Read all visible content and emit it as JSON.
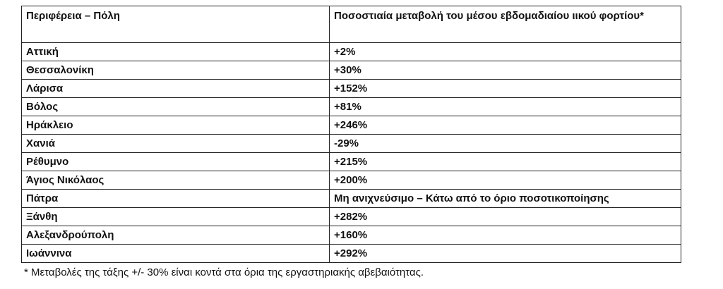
{
  "table": {
    "header": [
      "Περιφέρεια – Πόλη",
      "Ποσοστιαία μεταβολή του μέσου εβδομαδιαίου ιικού φορτίου*"
    ],
    "rows": [
      [
        "Αττική",
        "+2%"
      ],
      [
        "Θεσσαλονίκη",
        "+30%"
      ],
      [
        "Λάρισα",
        "+152%"
      ],
      [
        "Βόλος",
        "+81%"
      ],
      [
        "Ηράκλειο",
        "+246%"
      ],
      [
        "Χανιά",
        "-29%"
      ],
      [
        "Ρέθυμνο",
        "+215%"
      ],
      [
        "Άγιος Νικόλαος",
        "+200%"
      ],
      [
        "Πάτρα",
        "Μη ανιχνεύσιμο – Κάτω από το όριο ποσοτικοποίησης"
      ],
      [
        "Ξάνθη",
        "+282%"
      ],
      [
        "Αλεξανδρούπολη",
        "+160%"
      ],
      [
        "Ιωάννινα",
        "+292%"
      ]
    ]
  },
  "footnote": "* Μεταβολές της τάξης +/- 30% είναι κοντά στα όρια της εργαστηριακής αβεβαιότητας."
}
